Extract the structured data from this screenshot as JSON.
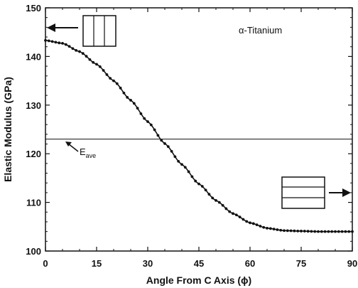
{
  "chart_data": {
    "type": "line",
    "xlabel": "Angle From C Axis (ϕ)",
    "ylabel": "Elastic Modulus (GPa)",
    "xlim": [
      0,
      90
    ],
    "ylim": [
      100,
      150
    ],
    "x_ticks": [
      "0",
      "15",
      "30",
      "45",
      "60",
      "75",
      "90"
    ],
    "y_ticks": [
      "100",
      "110",
      "120",
      "130",
      "140",
      "150"
    ],
    "grid": false,
    "series": [
      {
        "x": [
          0,
          5,
          10,
          15,
          20,
          25,
          30,
          35,
          40,
          45,
          50,
          55,
          60,
          65,
          70,
          75,
          80,
          85,
          90
        ],
        "y": [
          143.3,
          142.7,
          141.0,
          138.4,
          135.0,
          131.0,
          126.6,
          122.1,
          117.8,
          113.8,
          110.4,
          107.7,
          105.8,
          104.7,
          104.2,
          104.1,
          104.0,
          104.0,
          104.0
        ]
      }
    ],
    "reference_line": {
      "y": 123,
      "label_main": "E",
      "label_sub": "ave"
    },
    "annotations": {
      "material": "α-Titanium"
    }
  }
}
